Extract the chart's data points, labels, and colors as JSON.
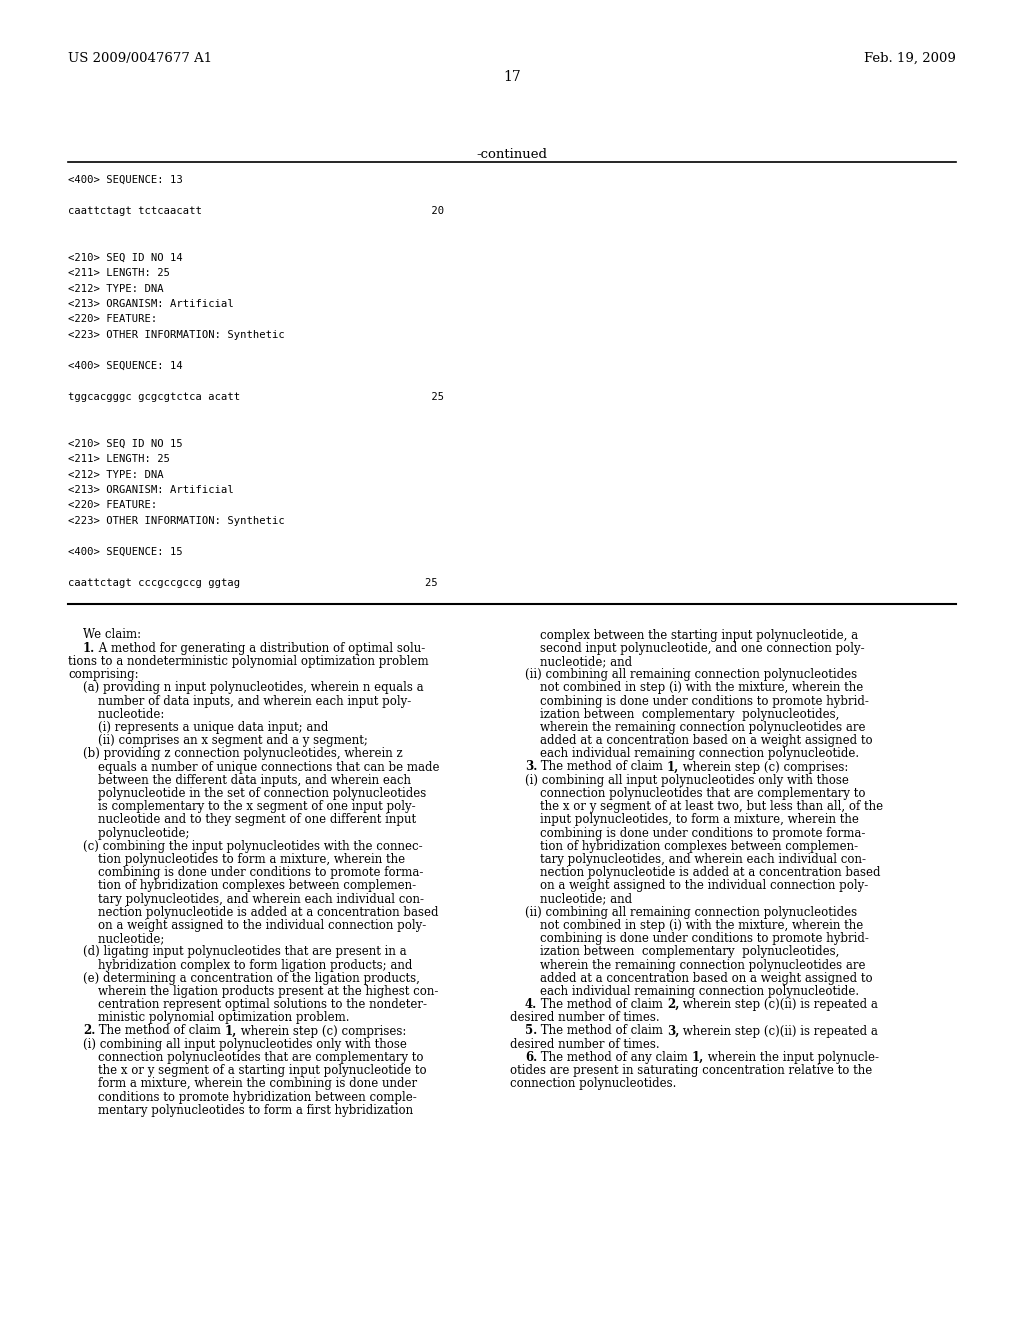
{
  "background_color": "#ffffff",
  "header_left": "US 2009/0047677 A1",
  "header_right": "Feb. 19, 2009",
  "page_number": "17",
  "continued_text": "-continued",
  "mono_lines": [
    "<400> SEQUENCE: 13",
    "",
    "caattctagt tctcaacatt                                    20",
    "",
    "",
    "<210> SEQ ID NO 14",
    "<211> LENGTH: 25",
    "<212> TYPE: DNA",
    "<213> ORGANISM: Artificial",
    "<220> FEATURE:",
    "<223> OTHER INFORMATION: Synthetic",
    "",
    "<400> SEQUENCE: 14",
    "",
    "tggcacgggc gcgcgtctca acatt                              25",
    "",
    "",
    "<210> SEQ ID NO 15",
    "<211> LENGTH: 25",
    "<212> TYPE: DNA",
    "<213> ORGANISM: Artificial",
    "<220> FEATURE:",
    "<223> OTHER INFORMATION: Synthetic",
    "",
    "<400> SEQUENCE: 15",
    "",
    "caattctagt cccgccgccg ggtag                             25"
  ],
  "left_col_lines": [
    "    We claim:",
    "    ·1. A method for generating a distribution of optimal solu-",
    "tions to a nondeterministic polynomial optimization problem",
    "comprising:",
    "    (a) providing n input polynucleotides, wherein n equals a",
    "        number of data inputs, and wherein each input poly-",
    "        nucleotide:",
    "        (i) represents a unique data input; and",
    "        (ii) comprises an x segment and a y segment;",
    "    (b) providing z connection polynucleotides, wherein z",
    "        equals a number of unique connections that can be made",
    "        between the different data inputs, and wherein each",
    "        polynucleotide in the set of connection polynucleotides",
    "        is complementary to the x segment of one input poly-",
    "        nucleotide and to they segment of one different input",
    "        polynucleotide;",
    "    (c) combining the input polynucleotides with the connec-",
    "        tion polynucleotides to form a mixture, wherein the",
    "        combining is done under conditions to promote forma-",
    "        tion of hybridization complexes between complemen-",
    "        tary polynucleotides, and wherein each individual con-",
    "        nection polynucleotide is added at a concentration based",
    "        on a weight assigned to the individual connection poly-",
    "        nucleotide;",
    "    (d) ligating input polynucleotides that are present in a",
    "        hybridization complex to form ligation products; and",
    "    (e) determining a concentration of the ligation products,",
    "        wherein the ligation products present at the highest con-",
    "        centration represent optimal solutions to the nondeter-",
    "        ministic polynomial optimization problem.",
    "    ·2. The method of claim ·1, wherein step (c) comprises:",
    "    (i) combining all input polynucleotides only with those",
    "        connection polynucleotides that are complementary to",
    "        the x or y segment of a starting input polynucleotide to",
    "        form a mixture, wherein the combining is done under",
    "        conditions to promote hybridization between comple-",
    "        mentary polynucleotides to form a first hybridization"
  ],
  "right_col_lines": [
    "        complex between the starting input polynucleotide, a",
    "        second input polynucleotide, and one connection poly-",
    "        nucleotide; and",
    "    (ii) combining all remaining connection polynucleotides",
    "        not combined in step (i) with the mixture, wherein the",
    "        combining is done under conditions to promote hybrid-",
    "        ization between  complementary  polynucleotides,",
    "        wherein the remaining connection polynucleotides are",
    "        added at a concentration based on a weight assigned to",
    "        each individual remaining connection polynucleotide.",
    "    ·3. The method of claim ·1, wherein step (c) comprises:",
    "    (i) combining all input polynucleotides only with those",
    "        connection polynucleotides that are complementary to",
    "        the x or y segment of at least two, but less than all, of the",
    "        input polynucleotides, to form a mixture, wherein the",
    "        combining is done under conditions to promote forma-",
    "        tion of hybridization complexes between complemen-",
    "        tary polynucleotides, and wherein each individual con-",
    "        nection polynucleotide is added at a concentration based",
    "        on a weight assigned to the individual connection poly-",
    "        nucleotide; and",
    "    (ii) combining all remaining connection polynucleotides",
    "        not combined in step (i) with the mixture, wherein the",
    "        combining is done under conditions to promote hybrid-",
    "        ization between  complementary  polynucleotides,",
    "        wherein the remaining connection polynucleotides are",
    "        added at a concentration based on a weight assigned to",
    "        each individual remaining connection polynucleotide.",
    "    ·4. The method of claim ·2, wherein step (c)(ii) is repeated a",
    "desired number of times.",
    "    ·5. The method of claim ·3, wherein step (c)(ii) is repeated a",
    "desired number of times.",
    "    ·6. The method of any claim ·1, wherein the input polynucle-",
    "otides are present in saturating concentration relative to the",
    "connection polynucleotides."
  ],
  "bold_markers": [
    "·"
  ]
}
